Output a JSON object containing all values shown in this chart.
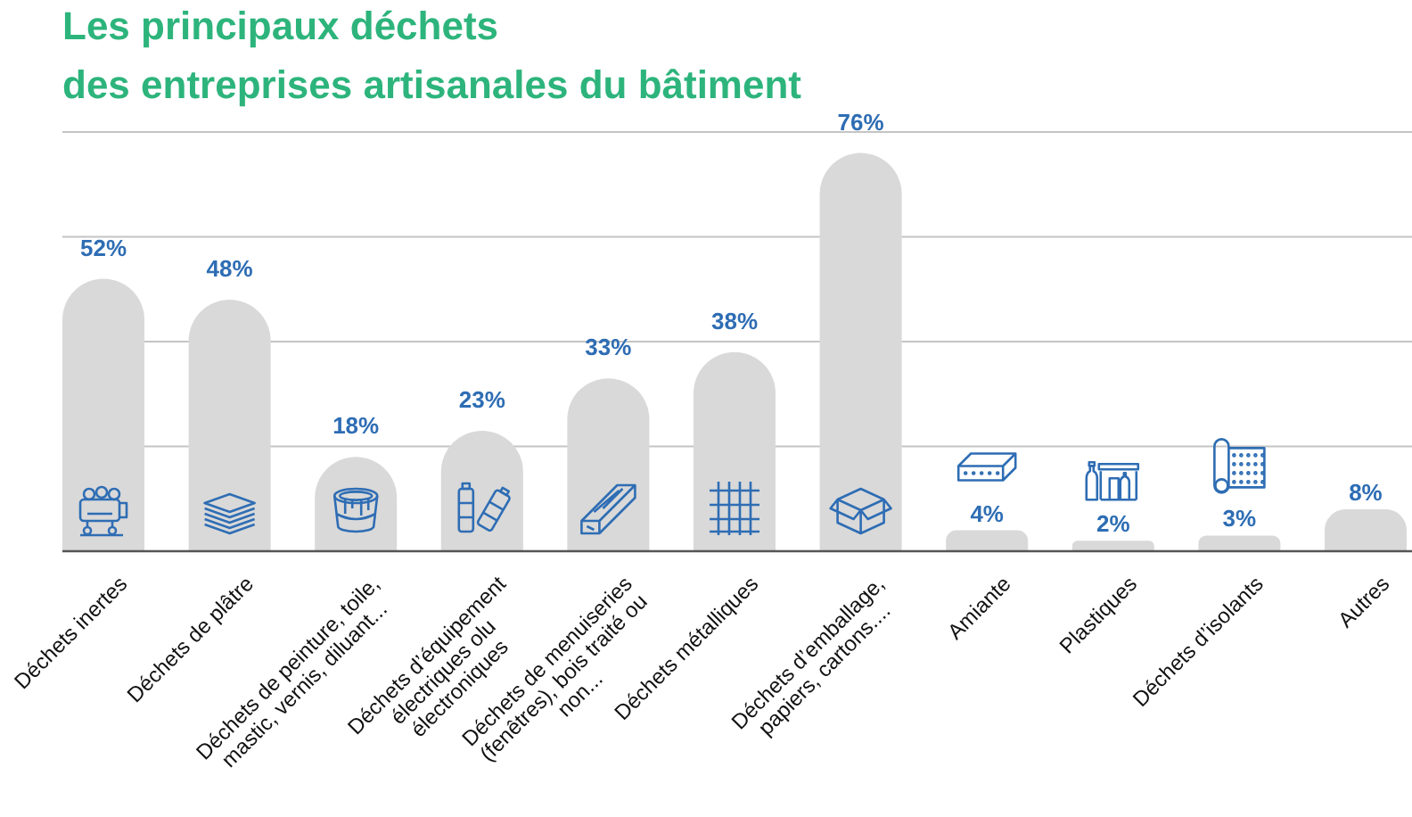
{
  "chart_data": {
    "type": "bar",
    "title": "Les principaux déchets\ndes entreprises artisanales du bâtiment",
    "categories": [
      "Déchets inertes",
      "Déchets de plâtre",
      "Déchets de peinture, toile,\nmastic, vernis, diluant...",
      "Déchets d’équipement\nélectriques olu\nélectroniques",
      "Déchets de menuiseries\n(fenêtres), bois traité ou\nnon...",
      "Déchets métalliques",
      "Déchets d’emballage,\npapiers, cartons....",
      "Amiante",
      "Plastiques",
      "Déchets d’isolants",
      "Autres"
    ],
    "values": [
      52,
      48,
      18,
      23,
      33,
      38,
      76,
      4,
      2,
      3,
      8
    ],
    "value_labels": [
      "52%",
      "48%",
      "18%",
      "23%",
      "33%",
      "38%",
      "76%",
      "4%",
      "2%",
      "3%",
      "8%"
    ],
    "color": "#d9d9d9",
    "ylim": [
      0,
      80
    ],
    "yticks": [
      {
        "value": 20,
        "label": null
      },
      {
        "value": 40,
        "label": null
      },
      {
        "value": 60,
        "label": null
      },
      {
        "value": 80,
        "label": null
      }
    ],
    "grid": "y",
    "tick_labels": "x"
  }
}
